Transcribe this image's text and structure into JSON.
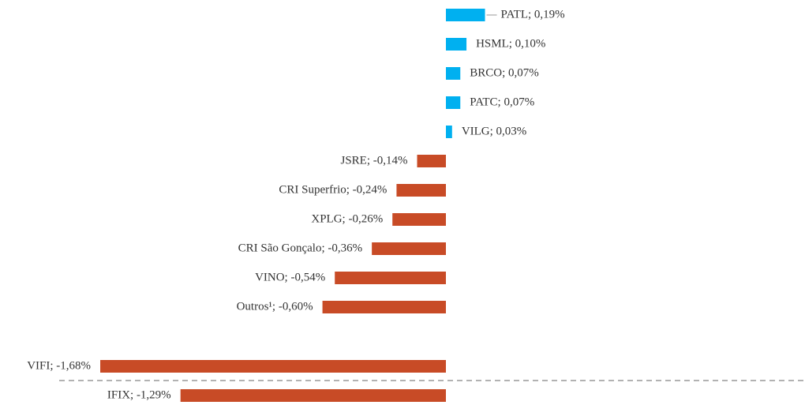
{
  "chart_data": {
    "type": "barh",
    "values": [
      0.19,
      0.1,
      0.07,
      0.07,
      0.03,
      -0.14,
      -0.24,
      -0.26,
      -0.36,
      -0.54,
      -0.6,
      -1.68,
      -1.29
    ],
    "value_labels": [
      "PATL; 0,19%",
      "HSML; 0,10%",
      "BRCO; 0,07%",
      "PATC; 0,07%",
      "VILG; 0,03%",
      "JSRE; -0,14%",
      "CRI Superfrio; -0,24%",
      "XPLG; -0,26%",
      "CRI São Gonçalo; -0,36%",
      "VINO; -0,54%",
      "Outros¹; -0,60%",
      "VIFI; -1,68%",
      "IFIX; -1,29%"
    ],
    "colors": {
      "positive": "#00b0f0",
      "negative": "#c84b26"
    }
  }
}
